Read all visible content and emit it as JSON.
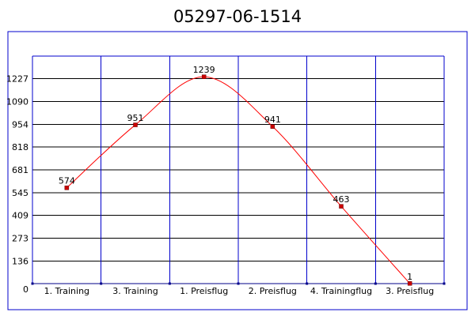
{
  "chart_data": {
    "type": "line",
    "title": "05297-06-1514",
    "xlabel": "",
    "ylabel": "",
    "categories": [
      "1. Training",
      "3. Training",
      "1. Preisflug",
      "2. Preisflug",
      "4. Trainingflug",
      "3. Preisflug"
    ],
    "values": [
      574,
      951,
      1239,
      941,
      463,
      1
    ],
    "data_labels": [
      "574",
      "951",
      "1239",
      "941",
      "463",
      "1"
    ],
    "yticks": [
      0,
      136,
      273,
      409,
      545,
      681,
      818,
      954,
      1090,
      1227
    ],
    "ylim": [
      0,
      1363
    ],
    "grid": true,
    "smooth": true,
    "colors": {
      "line": "#ff0000",
      "marker": "#cc0000",
      "grid": "#0000cc",
      "axis": "#000088",
      "frame": "#0000cc"
    }
  }
}
